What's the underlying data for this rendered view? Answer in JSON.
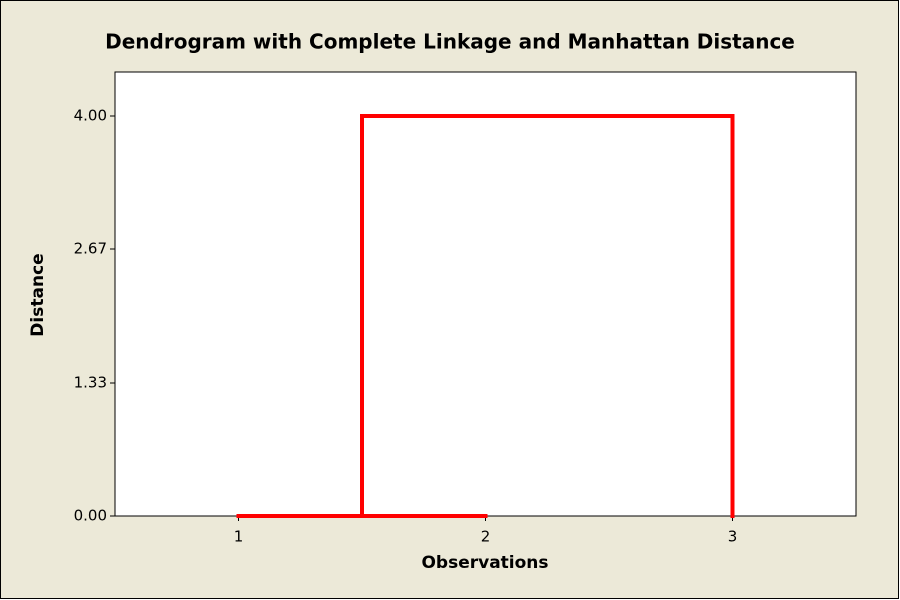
{
  "chart_data": {
    "type": "dendrogram",
    "title": "Dendrogram with Complete Linkage and Manhattan Distance",
    "x_label": "Observations",
    "y_label": "Distance",
    "categories": [
      "1",
      "2",
      "3"
    ],
    "merges": [
      {
        "left": 0,
        "right": 1,
        "height": 0
      },
      {
        "left": 3,
        "right": 2,
        "height": 4
      }
    ],
    "color": "#ff0000",
    "xlim": [
      0.5,
      3.5
    ],
    "ylim": [
      0,
      4.44
    ],
    "yticks": [
      {
        "value": 0,
        "label": "0.00"
      },
      1.33,
      2.67,
      {
        "value": 4,
        "label": "4.00"
      }
    ]
  }
}
